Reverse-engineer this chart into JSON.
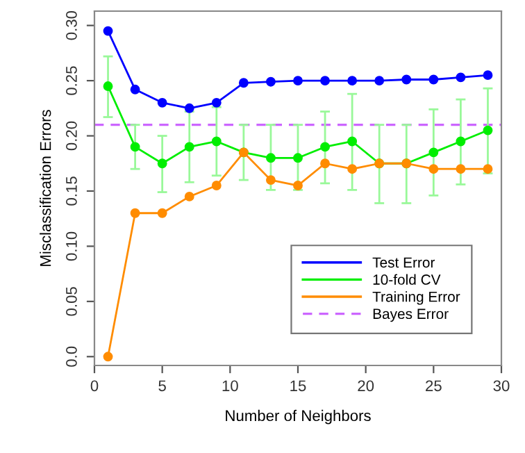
{
  "chart_data": {
    "type": "line",
    "xlabel": "Number of Neighbors",
    "ylabel": "Misclassification Errors",
    "x": [
      1,
      3,
      5,
      7,
      9,
      11,
      13,
      15,
      17,
      19,
      21,
      23,
      25,
      27,
      29
    ],
    "series": [
      {
        "name": "Test Error",
        "color": "#0000ff",
        "values": [
          0.295,
          0.242,
          0.23,
          0.225,
          0.23,
          0.248,
          0.249,
          0.25,
          0.25,
          0.25,
          0.25,
          0.251,
          0.251,
          0.253,
          0.255
        ]
      },
      {
        "name": "10-fold CV",
        "color": "#00ee00",
        "values": [
          0.245,
          0.19,
          0.175,
          0.19,
          0.195,
          0.185,
          0.18,
          0.18,
          0.19,
          0.195,
          0.175,
          0.175,
          0.185,
          0.195,
          0.205
        ],
        "errors": [
          [
            0.217,
            0.272
          ],
          [
            0.17,
            0.21
          ],
          [
            0.149,
            0.2
          ],
          [
            0.158,
            0.222
          ],
          [
            0.164,
            0.226
          ],
          [
            0.16,
            0.21
          ],
          [
            0.151,
            0.21
          ],
          [
            0.151,
            0.21
          ],
          [
            0.157,
            0.222
          ],
          [
            0.151,
            0.238
          ],
          [
            0.139,
            0.21
          ],
          [
            0.139,
            0.21
          ],
          [
            0.146,
            0.224
          ],
          [
            0.156,
            0.233
          ],
          [
            0.166,
            0.243
          ]
        ]
      },
      {
        "name": "Training Error",
        "color": "#ff8c00",
        "values": [
          0.0,
          0.13,
          0.13,
          0.145,
          0.155,
          0.185,
          0.16,
          0.155,
          0.175,
          0.17,
          0.175,
          0.175,
          0.17,
          0.17,
          0.17
        ]
      }
    ],
    "ref_lines": [
      {
        "axis": "y",
        "value": 0.21,
        "label": "Bayes Error",
        "color": "#cc66ff",
        "line_style": "dashed"
      }
    ],
    "xlim": [
      0,
      30
    ],
    "xticks": [
      0,
      5,
      10,
      15,
      20,
      25,
      30
    ],
    "ylim": [
      -0.008,
      0.313
    ],
    "yticks": [
      {
        "value": 0.0,
        "label": "0.0"
      },
      0.05,
      {
        "value": 0.1,
        "label": "0.10"
      },
      0.15,
      {
        "value": 0.2,
        "label": "0.20"
      },
      0.25,
      {
        "value": 0.3,
        "label": "0.30"
      }
    ],
    "marker": "circle",
    "legend": "bottom right",
    "grid": false
  }
}
